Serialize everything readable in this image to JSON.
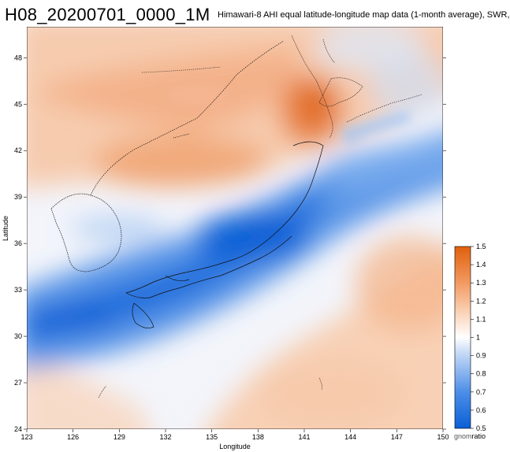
{
  "title": "H08_20200701_0000_1M",
  "subtitle": "Himawari-8 AHI equal latitude-longitude map data (1-month average), SWR,",
  "map": {
    "xlabel": "Longitude",
    "ylabel": "Latitude",
    "lon_ticks": [
      "123",
      "126",
      "129",
      "132",
      "135",
      "138",
      "141",
      "144",
      "147",
      "150"
    ],
    "lat_ticks": [
      "24",
      "27",
      "30",
      "33",
      "36",
      "39",
      "42",
      "45",
      "48"
    ],
    "lon_range": [
      123,
      150
    ],
    "lat_range": [
      24,
      50
    ],
    "low_color": "#0a5fd6",
    "mid_color": "#ffffff",
    "high_color": "#e8691a"
  },
  "colorbar": {
    "label": "ratio",
    "label_prefix_clipped": "gnom",
    "ticks": [
      "1.5",
      "1.4",
      "1.3",
      "1.2",
      "1.1",
      "1",
      "0.9",
      "0.8",
      "0.7",
      "0.6",
      "0.5"
    ],
    "range": [
      0.5,
      1.5
    ]
  }
}
